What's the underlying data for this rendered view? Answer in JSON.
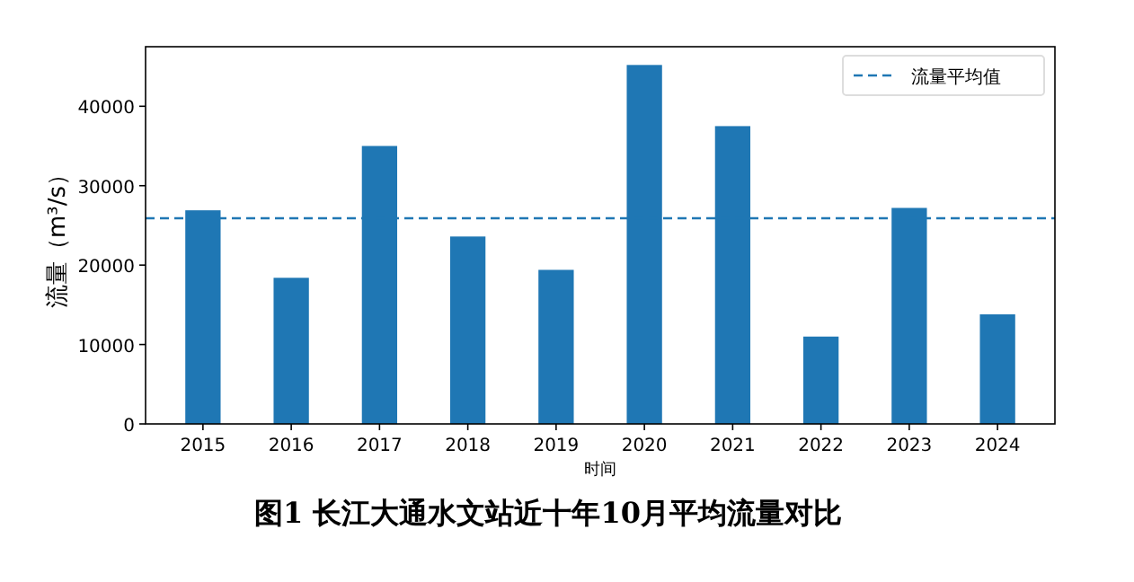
{
  "chart_data": {
    "type": "bar",
    "title": "图1  长江大通水文站近十年10月平均流量对比",
    "xlabel": "时间",
    "ylabel": "流量（m³/s）",
    "categories": [
      "2015",
      "2016",
      "2017",
      "2018",
      "2019",
      "2020",
      "2021",
      "2022",
      "2023",
      "2024"
    ],
    "values": [
      26900,
      18400,
      35000,
      23600,
      19400,
      45200,
      37500,
      11000,
      27200,
      13800
    ],
    "color": "#1f77b4",
    "ylim": [
      0,
      47500
    ],
    "yticks": [
      0,
      10000,
      20000,
      30000,
      40000
    ],
    "ref_lines": [
      {
        "axis": "y",
        "value": 25900,
        "label": "流量平均值",
        "color": "#1f77b4",
        "line_style": "dashed"
      }
    ],
    "legend": "top right",
    "grid": false
  }
}
